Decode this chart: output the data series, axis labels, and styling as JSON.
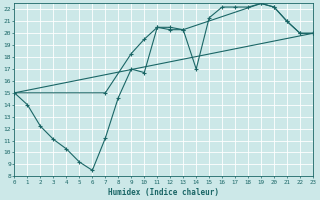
{
  "xlabel": "Humidex (Indice chaleur)",
  "bg_color": "#cce8e8",
  "line_color": "#1a6666",
  "grid_color": "#ffffff",
  "xlim": [
    0,
    23
  ],
  "ylim": [
    8,
    22.5
  ],
  "xticks": [
    0,
    1,
    2,
    3,
    4,
    5,
    6,
    7,
    8,
    9,
    10,
    11,
    12,
    13,
    14,
    15,
    16,
    17,
    18,
    19,
    20,
    21,
    22,
    23
  ],
  "yticks": [
    8,
    9,
    10,
    11,
    12,
    13,
    14,
    15,
    16,
    17,
    18,
    19,
    20,
    21,
    22
  ],
  "line1_x": [
    0,
    1,
    2,
    3,
    4,
    5,
    6,
    7,
    8,
    9,
    10,
    11,
    12,
    13,
    14,
    15,
    16,
    17,
    18,
    19,
    20,
    21,
    22,
    23
  ],
  "line1_y": [
    15,
    14,
    12.2,
    11.1,
    10.3,
    9.2,
    8.5,
    11.2,
    14.6,
    17.0,
    16.7,
    20.5,
    20.3,
    20.3,
    17.0,
    21.3,
    22.2,
    22.2,
    22.2,
    22.5,
    22.2,
    21.0,
    20.0,
    20.0
  ],
  "line2_x": [
    0,
    7,
    9,
    10,
    11,
    12,
    13,
    19,
    20,
    21,
    22,
    23
  ],
  "line2_y": [
    15,
    15.0,
    18.3,
    19.5,
    20.5,
    20.5,
    20.3,
    22.5,
    22.2,
    21.0,
    20.0,
    20.0
  ],
  "line3_x": [
    0,
    23
  ],
  "line3_y": [
    15,
    20.0
  ]
}
